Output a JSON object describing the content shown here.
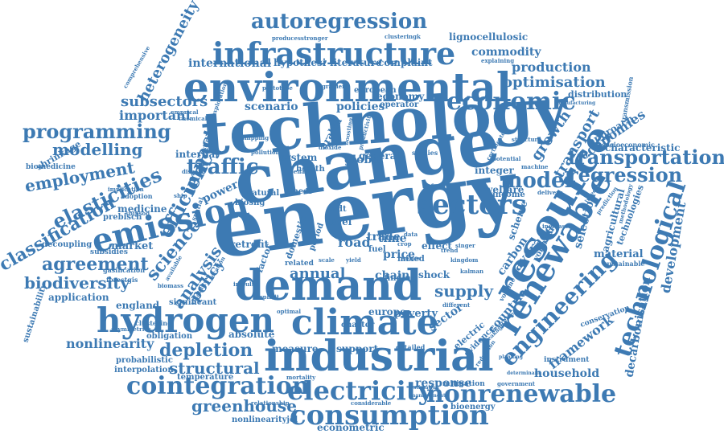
{
  "color": "#3d7ab3",
  "words": [
    {
      "text": "energy"
    },
    {
      "text": "change"
    },
    {
      "text": "technology"
    },
    {
      "text": "environmental"
    },
    {
      "text": "demand"
    },
    {
      "text": "industrial"
    },
    {
      "text": "climate"
    },
    {
      "text": "hydrogen"
    },
    {
      "text": "infrastructure"
    },
    {
      "text": "resource"
    },
    {
      "text": "emission"
    },
    {
      "text": "renewable"
    },
    {
      "text": "electricity"
    },
    {
      "text": "consumption"
    },
    {
      "text": "cointegration"
    },
    {
      "text": "nonrenewable"
    },
    {
      "text": "autoregression"
    },
    {
      "text": "sectors"
    },
    {
      "text": "economic"
    },
    {
      "text": "technological"
    },
    {
      "text": "engineering"
    },
    {
      "text": "transportation"
    },
    {
      "text": "regression"
    },
    {
      "text": "model"
    },
    {
      "text": "traffic"
    },
    {
      "text": "programming"
    },
    {
      "text": "modelling"
    },
    {
      "text": "employment"
    },
    {
      "text": "efficiency"
    },
    {
      "text": "elasticities"
    },
    {
      "text": "impact"
    },
    {
      "text": "classification"
    },
    {
      "text": "agreement"
    },
    {
      "text": "biodiversity"
    },
    {
      "text": "science"
    },
    {
      "text": "analysis"
    },
    {
      "text": "policy"
    },
    {
      "text": "depletion"
    },
    {
      "text": "structural"
    },
    {
      "text": "nonlinearity"
    },
    {
      "text": "greenhouse"
    },
    {
      "text": "supply"
    },
    {
      "text": "annual"
    },
    {
      "text": "optimisation"
    },
    {
      "text": "production"
    },
    {
      "text": "commodity"
    },
    {
      "text": "subsectors"
    },
    {
      "text": "important"
    },
    {
      "text": "heterogeneity"
    },
    {
      "text": "international"
    },
    {
      "text": "hypothesi"
    },
    {
      "text": "literature"
    },
    {
      "text": "complaint"
    },
    {
      "text": "lignocellulosic"
    },
    {
      "text": "growth"
    },
    {
      "text": "transport"
    },
    {
      "text": "economies"
    },
    {
      "text": "characteristic"
    },
    {
      "text": "development"
    },
    {
      "text": "decarbonisation"
    },
    {
      "text": "framework"
    },
    {
      "text": "household"
    },
    {
      "text": "average"
    },
    {
      "text": "selection"
    },
    {
      "text": "agricultural"
    },
    {
      "text": "technologies"
    },
    {
      "text": "material"
    },
    {
      "text": "sustainable"
    },
    {
      "text": "conservation"
    },
    {
      "text": "instrument"
    },
    {
      "text": "bioenergy"
    },
    {
      "text": "response"
    },
    {
      "text": "mitigation"
    },
    {
      "text": "econometric"
    },
    {
      "text": "nonlinearityjel"
    },
    {
      "text": "temperature"
    },
    {
      "text": "interpolation"
    },
    {
      "text": "probabilistic"
    },
    {
      "text": "obligation"
    },
    {
      "text": "absolute"
    },
    {
      "text": "measure"
    },
    {
      "text": "support"
    },
    {
      "text": "england"
    },
    {
      "text": "application"
    },
    {
      "text": "decoupling"
    },
    {
      "text": "subsidies"
    },
    {
      "text": "market"
    },
    {
      "text": "medicine"
    },
    {
      "text": "prebisch"
    },
    {
      "text": "shrinkage"
    },
    {
      "text": "biomedicine"
    },
    {
      "text": "scenario"
    },
    {
      "text": "policies"
    },
    {
      "text": "global"
    },
    {
      "text": "general"
    },
    {
      "text": "integer"
    },
    {
      "text": "system"
    },
    {
      "text": "internal"
    },
    {
      "text": "power"
    },
    {
      "text": "retrofit"
    },
    {
      "text": "road"
    },
    {
      "text": "trade"
    },
    {
      "text": "chain"
    },
    {
      "text": "shock"
    },
    {
      "text": "poverty"
    },
    {
      "text": "europe"
    },
    {
      "text": "charter"
    },
    {
      "text": "sector"
    },
    {
      "text": "countrie"
    },
    {
      "text": "electric"
    },
    {
      "text": "evidence"
    },
    {
      "text": "carbon"
    },
    {
      "text": "price"
    },
    {
      "text": "time"
    },
    {
      "text": "effect"
    },
    {
      "text": "welfare"
    },
    {
      "text": "income"
    },
    {
      "text": "level"
    },
    {
      "text": "aadt"
    },
    {
      "text": "fuel"
    },
    {
      "text": "linear"
    },
    {
      "text": "domestic"
    },
    {
      "text": "period"
    },
    {
      "text": "economy"
    },
    {
      "text": "european"
    },
    {
      "text": "operator"
    },
    {
      "text": "health"
    },
    {
      "text": "arabia"
    },
    {
      "text": "biosng"
    },
    {
      "text": "natural"
    },
    {
      "text": "significant"
    },
    {
      "text": "sustainability"
    },
    {
      "text": "factor"
    },
    {
      "text": "related"
    },
    {
      "text": "mixed"
    },
    {
      "text": "finding"
    },
    {
      "text": "distribution"
    },
    {
      "text": "approach"
    },
    {
      "text": "scheme"
    },
    {
      "text": "voluntary"
    },
    {
      "text": "manufacturing"
    },
    {
      "text": "explaining"
    },
    {
      "text": "socioeconomic"
    },
    {
      "text": "transmission"
    },
    {
      "text": "structure"
    },
    {
      "text": "machine"
    },
    {
      "text": "delivery"
    },
    {
      "text": "increase"
    },
    {
      "text": "reform"
    },
    {
      "text": "studies"
    },
    {
      "text": "different"
    },
    {
      "text": "detailed"
    },
    {
      "text": "relationship"
    },
    {
      "text": "considerable"
    },
    {
      "text": "government"
    },
    {
      "text": "gasification"
    },
    {
      "text": "forestgis"
    },
    {
      "text": "clustering"
    },
    {
      "text": "asymmetries"
    },
    {
      "text": "emprical"
    },
    {
      "text": "chemical"
    },
    {
      "text": "comprehensive"
    },
    {
      "text": "prototype"
    },
    {
      "text": "clusteringk"
    },
    {
      "text": "producesstronger"
    },
    {
      "text": "exploration"
    },
    {
      "text": "pollution"
    },
    {
      "text": "behavior"
    },
    {
      "text": "paper"
    },
    {
      "text": "estimation"
    },
    {
      "text": "management"
    },
    {
      "text": "planning"
    },
    {
      "text": "determinant"
    },
    {
      "text": "mortality"
    },
    {
      "text": "optimal"
    },
    {
      "text": "impulse"
    },
    {
      "text": "scale"
    },
    {
      "text": "yield"
    },
    {
      "text": "crop"
    },
    {
      "text": "data"
    },
    {
      "text": "kingdom"
    },
    {
      "text": "infectious"
    },
    {
      "text": "prediction"
    },
    {
      "text": "potential"
    },
    {
      "text": "methodology"
    },
    {
      "text": "certificate"
    },
    {
      "text": "singer"
    },
    {
      "text": "trend"
    },
    {
      "text": "series"
    },
    {
      "text": "reduction"
    },
    {
      "text": "leakage"
    },
    {
      "text": "extreme"
    },
    {
      "text": "spatial"
    },
    {
      "text": "estimate"
    },
    {
      "text": "dioxide"
    },
    {
      "text": "gradient"
    },
    {
      "text": "boosting"
    },
    {
      "text": "productivity"
    },
    {
      "text": "implication"
    },
    {
      "text": "adoption"
    },
    {
      "text": "shipsod"
    },
    {
      "text": "ship"
    },
    {
      "text": "disease"
    },
    {
      "text": "shipping"
    },
    {
      "text": "available"
    },
    {
      "text": "location"
    },
    {
      "text": "explicit"
    },
    {
      "text": "kalman"
    },
    {
      "text": "volume"
    },
    {
      "text": "biomass"
    },
    {
      "text": "volatility"
    }
  ]
}
